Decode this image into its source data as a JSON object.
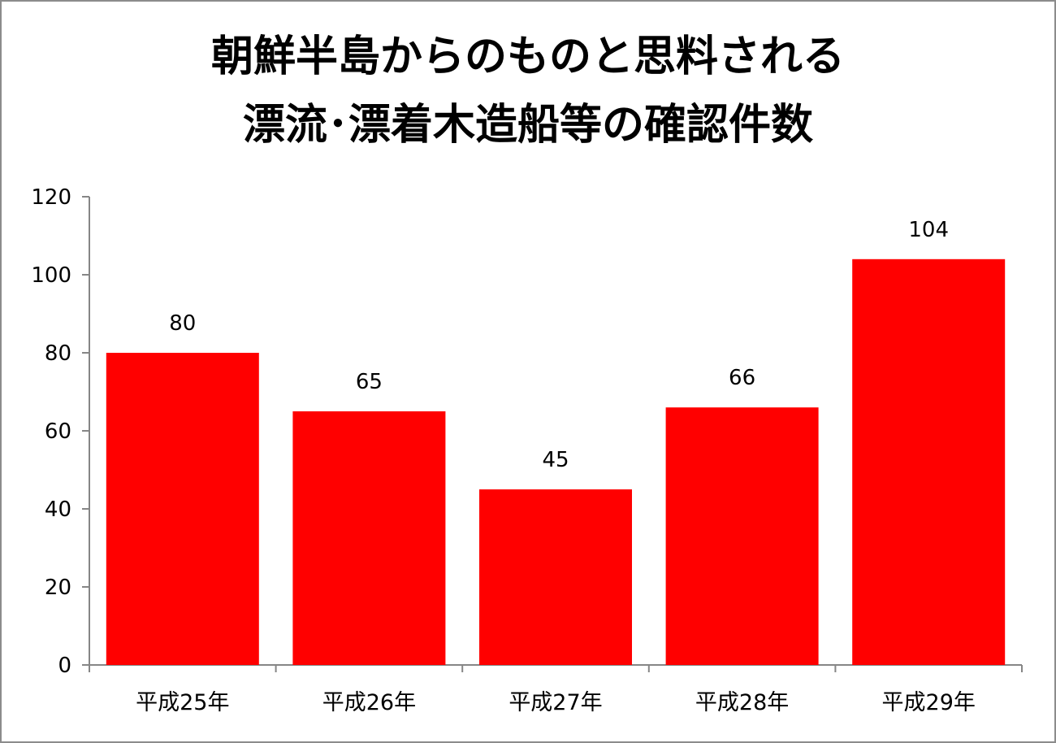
{
  "chart_data": {
    "type": "bar",
    "title_lines": [
      "朝鮮半島からのものと思料される",
      "漂流･漂着木造船等の確認件数"
    ],
    "categories": [
      "平成25年",
      "平成26年",
      "平成27年",
      "平成28年",
      "平成29年"
    ],
    "values": [
      80,
      65,
      45,
      66,
      104
    ],
    "data_labels": [
      "80",
      "65",
      "45",
      "66",
      "104"
    ],
    "y_ticks": [
      "0",
      "20",
      "40",
      "60",
      "80",
      "100",
      "120"
    ],
    "ylim": [
      0,
      120
    ],
    "xlabel": "",
    "ylabel": "",
    "bar_color": "#ff0000",
    "grid": false,
    "legend": "none"
  }
}
